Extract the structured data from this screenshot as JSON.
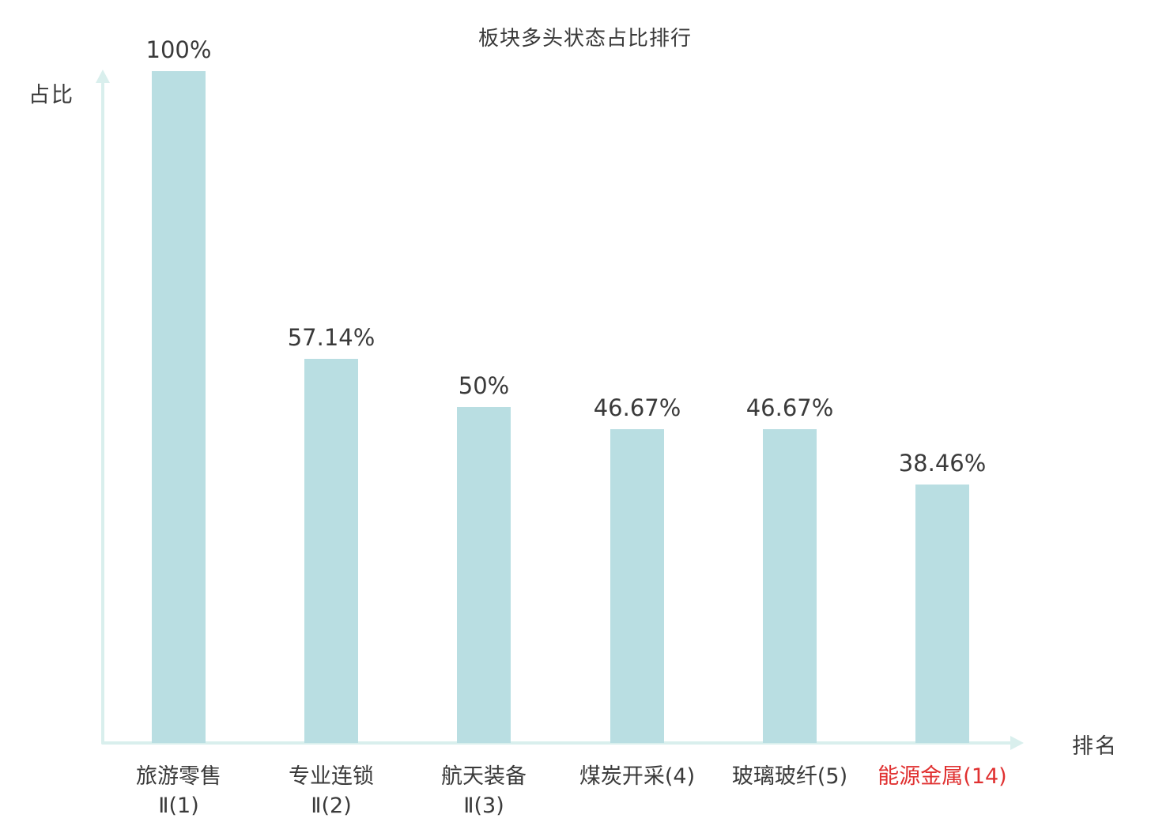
{
  "chart_data": {
    "type": "bar",
    "title": "板块多头状态占比排行",
    "xlabel": "排名",
    "ylabel": "占比",
    "ylim": [
      0,
      100
    ],
    "grid": false,
    "legend": "none",
    "categories": [
      "旅游零售Ⅱ(1)",
      "专业连锁Ⅱ(2)",
      "航天装备Ⅱ(3)",
      "煤炭开采(4)",
      "玻璃玻纤(5)",
      "能源金属(14)"
    ],
    "values": [
      100,
      57.14,
      50,
      46.67,
      46.67,
      38.46
    ],
    "value_labels": [
      "100%",
      "57.14%",
      "50%",
      "46.67%",
      "46.67%",
      "38.46%"
    ],
    "category_label_lines": [
      [
        "旅游零售",
        "Ⅱ(1)"
      ],
      [
        "专业连锁",
        "Ⅱ(2)"
      ],
      [
        "航天装备",
        "Ⅱ(3)"
      ],
      [
        "煤炭开采(4)"
      ],
      [
        "玻璃玻纤(5)"
      ],
      [
        "能源金属(14)"
      ]
    ],
    "category_label_colors": [
      "#3a3a3a",
      "#3a3a3a",
      "#3a3a3a",
      "#3a3a3a",
      "#3a3a3a",
      "#e03131"
    ],
    "bar_color": "#b9dee2",
    "axis_color": "#d9efed",
    "text_color": "#3a3a3a"
  }
}
